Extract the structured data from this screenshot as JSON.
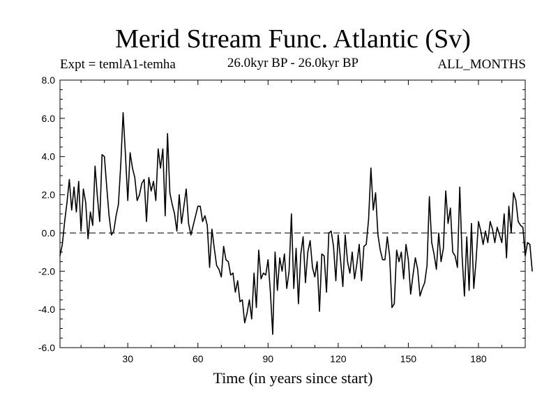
{
  "chart_data": {
    "type": "line",
    "title": "Merid Stream Func. Atlantic (Sv)",
    "subtitle": "26.0kyr BP - 26.0kyr BP",
    "left_label": "Expt = temlA1-temha",
    "right_label": "ALL_MONTHS",
    "xlabel": "Time (in years since start)",
    "ylabel": "",
    "xlim": [
      1,
      200
    ],
    "ylim": [
      -6,
      8
    ],
    "x_ticks": [
      30,
      60,
      90,
      120,
      150,
      180
    ],
    "y_ticks": [
      -6,
      -4,
      -2,
      0,
      2,
      4,
      6,
      8
    ],
    "y_tick_labels": [
      "-6.0",
      "-4.0",
      "-2.0",
      "0.0",
      "2.0",
      "4.0",
      "6.0",
      "8.0"
    ],
    "reference_line_y": 0,
    "x_start": 1,
    "x_step": 1,
    "values": [
      -1.2,
      -0.6,
      0.6,
      1.6,
      2.8,
      1.2,
      2.4,
      1.1,
      2.7,
      0.1,
      2.3,
      1.6,
      -0.3,
      1.1,
      0.4,
      3.5,
      1.9,
      0.6,
      4.1,
      4.0,
      2.4,
      0.9,
      -0.1,
      0.1,
      0.9,
      1.5,
      3.6,
      6.3,
      4.1,
      1.7,
      4.2,
      3.4,
      2.9,
      1.7,
      2.0,
      2.6,
      2.8,
      0.6,
      2.9,
      2.2,
      2.7,
      1.7,
      4.4,
      3.4,
      4.4,
      0.9,
      5.2,
      2.1,
      1.5,
      1.0,
      0.1,
      2.0,
      0.5,
      1.4,
      2.3,
      0.5,
      -0.1,
      0.4,
      0.9,
      1.4,
      1.4,
      0.6,
      0.9,
      0.4,
      -1.8,
      0.2,
      -0.8,
      -1.7,
      -1.9,
      -2.3,
      -0.7,
      -1.4,
      -1.5,
      -2.2,
      -2.1,
      -3.1,
      -2.5,
      -3.6,
      -3.5,
      -4.7,
      -4.2,
      -3.5,
      -4.5,
      -2.1,
      -3.9,
      -0.9,
      -2.4,
      -2.1,
      -2.2,
      -1.4,
      -3.1,
      -5.3,
      -1.0,
      -3.0,
      -1.3,
      -2.0,
      -1.1,
      -2.9,
      -2.0,
      1.0,
      -2.9,
      -0.8,
      -3.7,
      -1.1,
      -0.2,
      -2.6,
      -1.0,
      -0.4,
      -1.8,
      -2.3,
      -1.5,
      -4.1,
      -1.1,
      -1.2,
      -3.1,
      0.0,
      0.1,
      -0.7,
      -2.5,
      -0.1,
      -1.4,
      -2.8,
      -0.1,
      -1.5,
      -2.1,
      -1.0,
      -2.4,
      -1.6,
      -0.6,
      -2.5,
      -0.7,
      -0.6,
      0.7,
      3.4,
      1.2,
      2.1,
      -0.1,
      -0.9,
      -1.4,
      -1.4,
      -0.2,
      -1.2,
      -3.9,
      -3.7,
      -0.9,
      -1.5,
      -1.0,
      -2.4,
      -0.6,
      -1.4,
      -3.2,
      -2.2,
      -1.3,
      -1.9,
      -3.3,
      -2.9,
      -2.6,
      -1.7,
      1.9,
      -0.5,
      -1.1,
      -1.9,
      0.0,
      -1.5,
      -0.8,
      2.2,
      0.5,
      1.3,
      -1.0,
      -1.2,
      -1.8,
      2.4,
      -1.2,
      -3.3,
      -0.2,
      -3.0,
      0.5,
      -2.9,
      -1.4,
      0.6,
      0.1,
      -0.6,
      0.1,
      -0.5,
      0.6,
      0.2,
      -0.5,
      0.3,
      -0.1,
      -0.5,
      1.0,
      -1.3,
      1.4,
      0.0,
      2.1,
      1.7,
      0.6,
      0.4,
      0.3,
      -1.2,
      -0.5,
      -0.6,
      -2.0
    ]
  }
}
